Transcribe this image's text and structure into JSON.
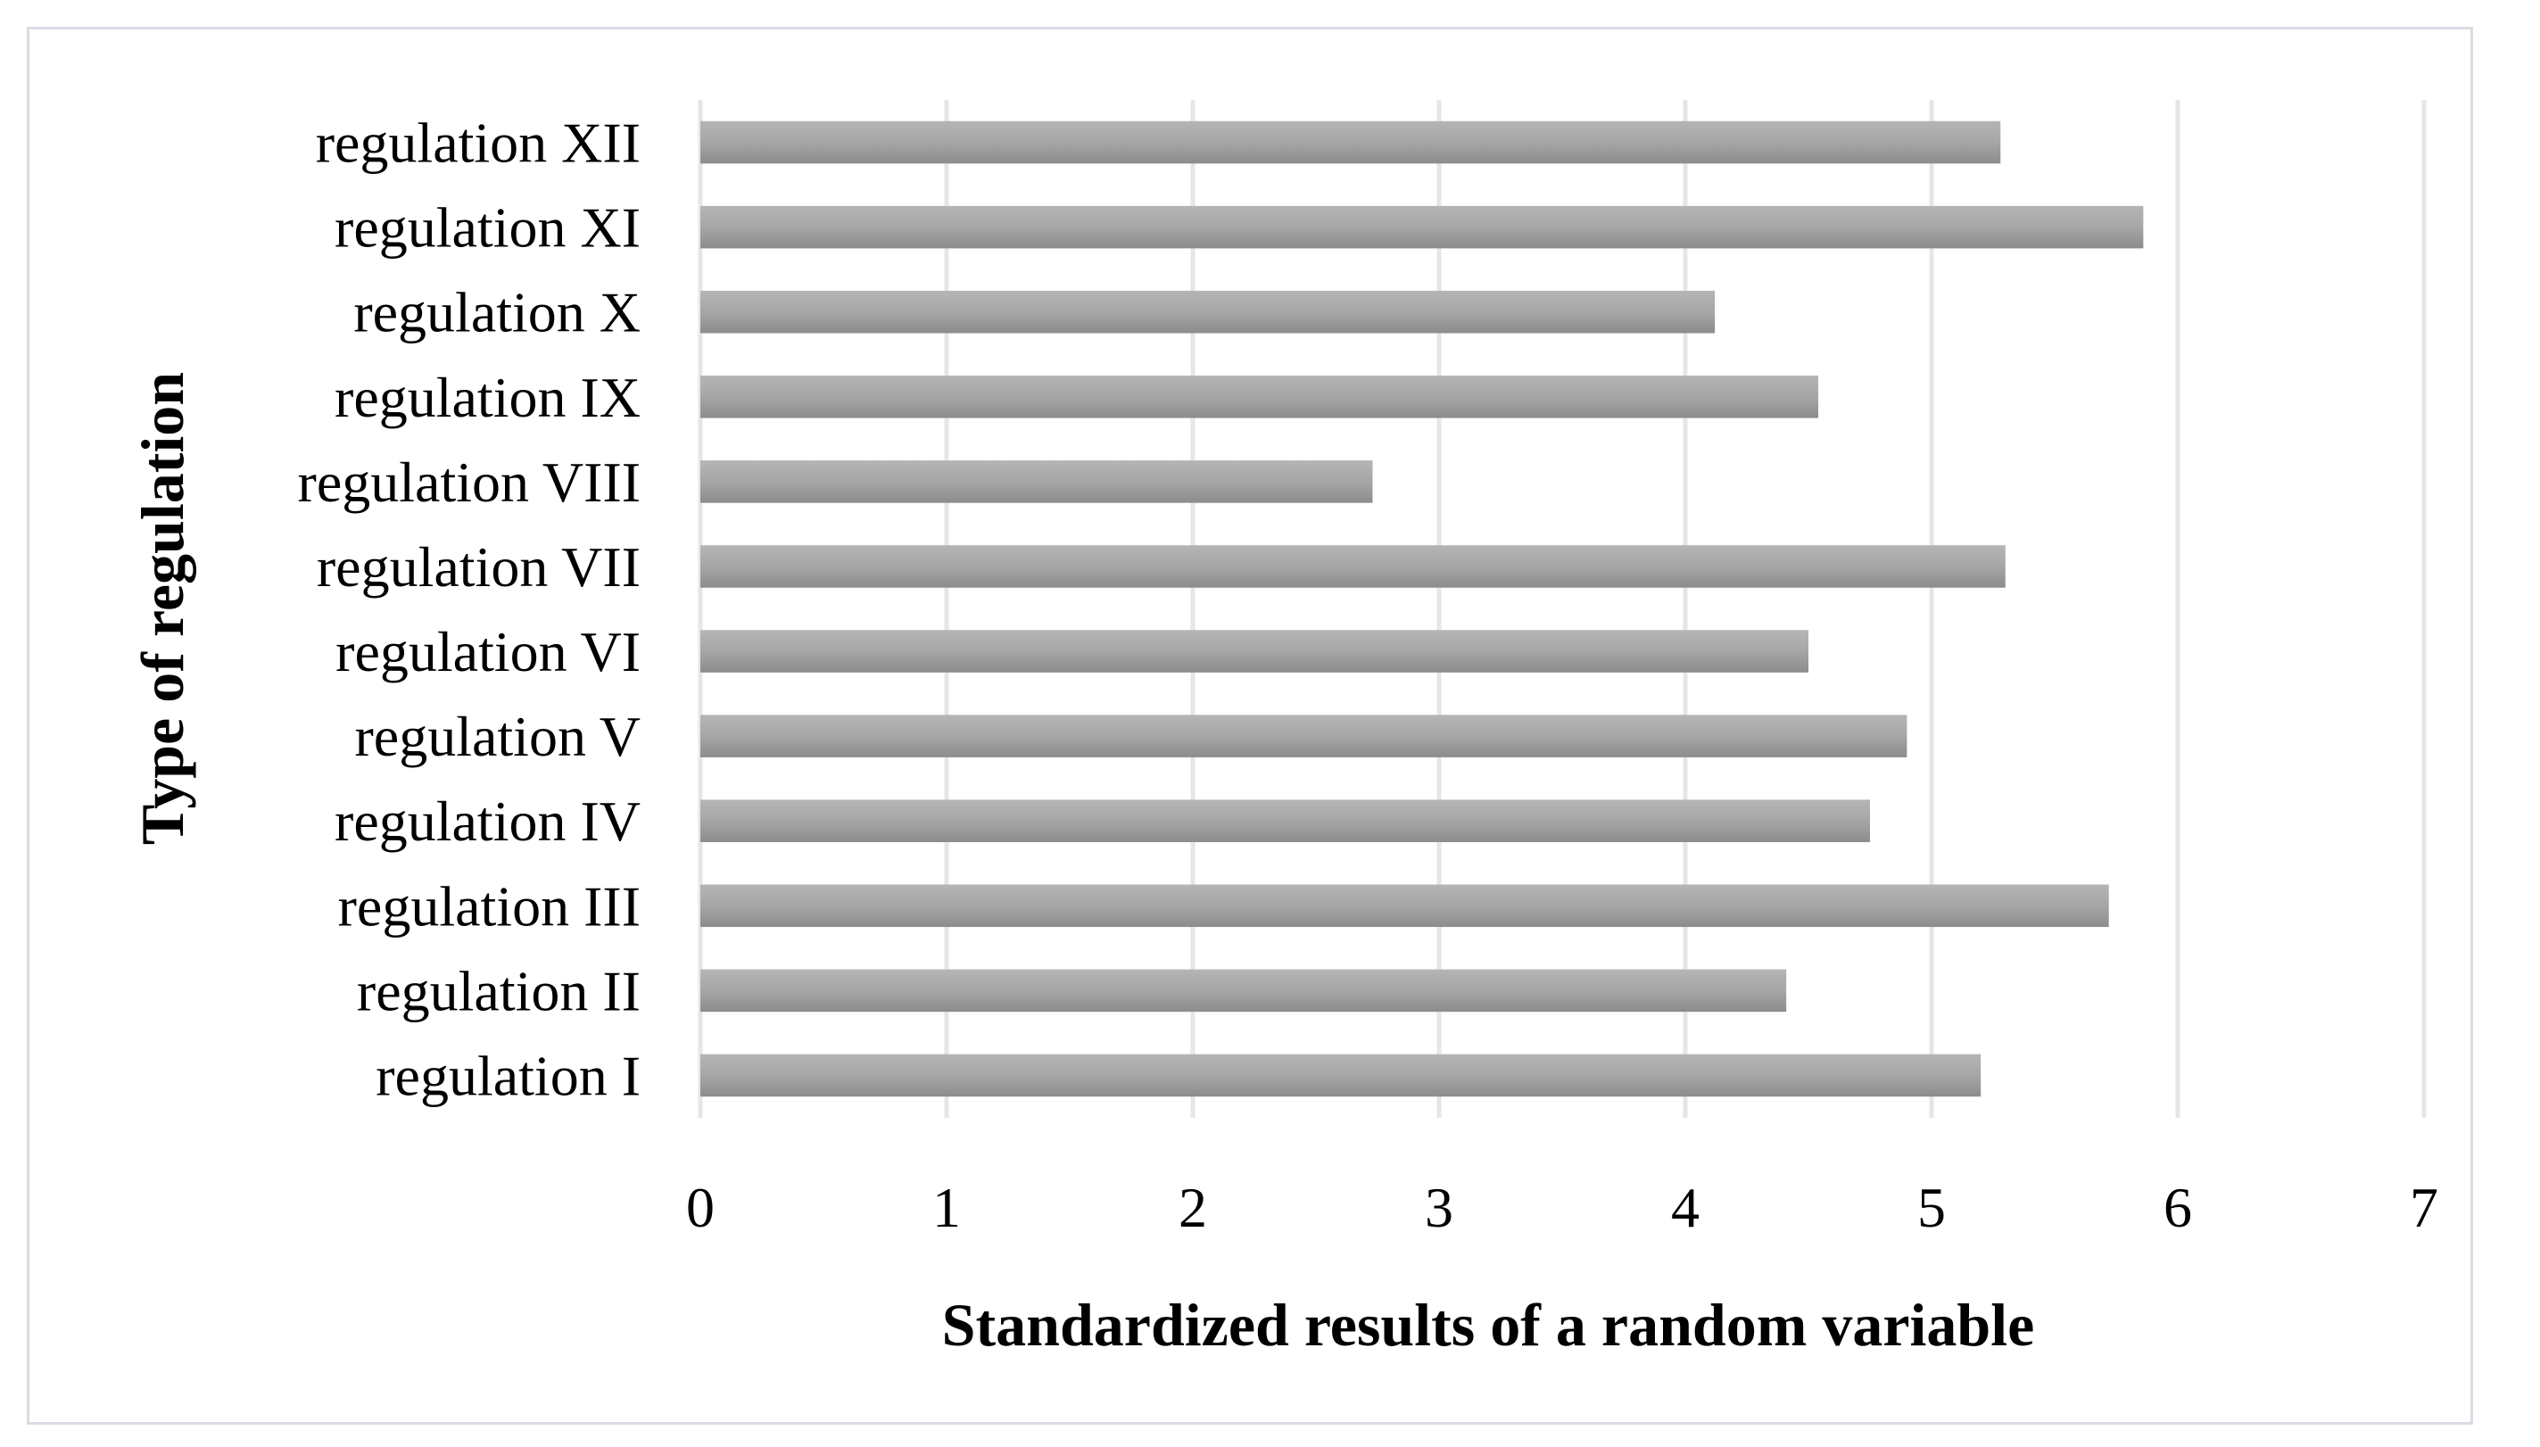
{
  "chart_data": {
    "type": "bar",
    "orientation": "horizontal",
    "categories": [
      "regulation I",
      "regulation II",
      "regulation III",
      "regulation IV",
      "regulation V",
      "regulation VI",
      "regulation VII",
      "regulation VIII",
      "regulation IX",
      "regulation X",
      "regulation XI",
      "regulation XII"
    ],
    "values": [
      5.2,
      4.41,
      5.72,
      4.75,
      4.9,
      4.5,
      5.3,
      2.73,
      4.54,
      4.12,
      5.86,
      5.28
    ],
    "xlabel": "Standardized results of a random variable",
    "ylabel": "Type of regulation",
    "xlim": [
      0,
      7
    ],
    "xticks": [
      "0",
      "1",
      "2",
      "3",
      "4",
      "5",
      "6",
      "7"
    ],
    "grid": true,
    "legend": "none",
    "bar_color": "#a3a3a3"
  }
}
